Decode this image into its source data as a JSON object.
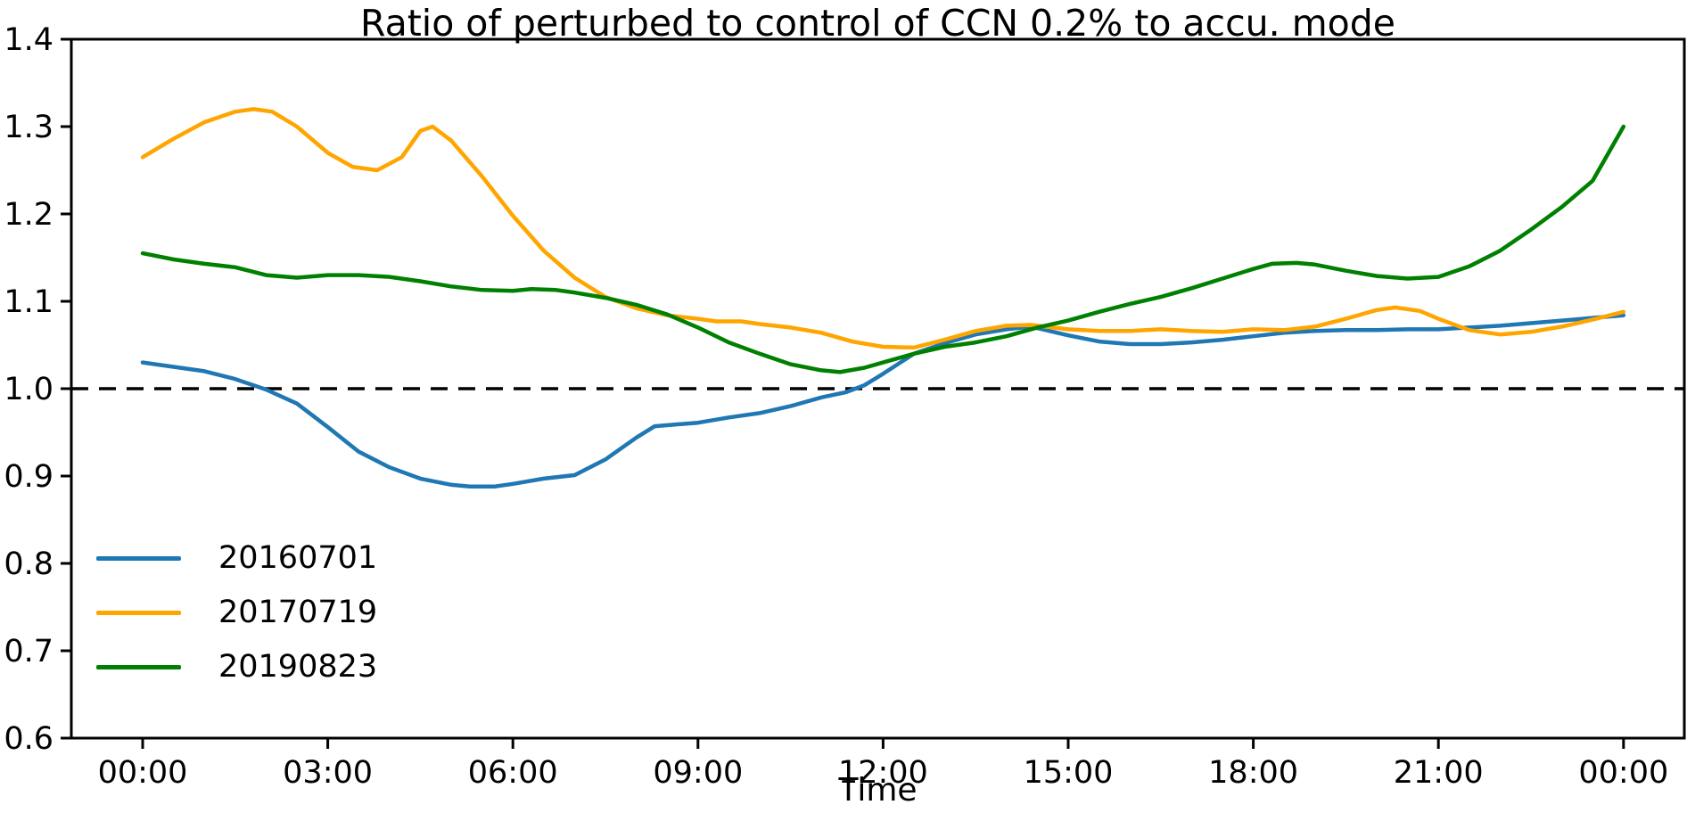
{
  "chart_data": {
    "type": "line",
    "title": "Ratio of perturbed to control of CCN 0.2% to accu. mode",
    "xlabel": "Time",
    "ylabel": "",
    "ylim": [
      0.6,
      1.4
    ],
    "yticks": [
      0.6,
      0.7,
      0.8,
      0.9,
      1.0,
      1.1,
      1.2,
      1.3,
      1.4
    ],
    "xtick_hours": [
      0,
      3,
      6,
      9,
      12,
      15,
      18,
      21,
      24
    ],
    "xtick_labels": [
      "00:00",
      "03:00",
      "06:00",
      "09:00",
      "12:00",
      "15:00",
      "18:00",
      "21:00",
      "00:00"
    ],
    "grid": false,
    "legend_position": "lower left",
    "reference_line": {
      "y": 1.0,
      "style": "dashed",
      "color": "#000000"
    },
    "axis_color": "#000000",
    "background_color": "#ffffff",
    "series": [
      {
        "name": "20160701",
        "color": "#1f77b4",
        "points": [
          [
            0,
            1.03
          ],
          [
            0.5,
            1.025
          ],
          [
            1,
            1.02
          ],
          [
            1.5,
            1.011
          ],
          [
            2,
            0.999
          ],
          [
            2.5,
            0.983
          ],
          [
            3,
            0.956
          ],
          [
            3.5,
            0.928
          ],
          [
            4,
            0.91
          ],
          [
            4.5,
            0.897
          ],
          [
            5,
            0.89
          ],
          [
            5.3,
            0.888
          ],
          [
            5.7,
            0.888
          ],
          [
            6,
            0.891
          ],
          [
            6.5,
            0.897
          ],
          [
            7,
            0.901
          ],
          [
            7.5,
            0.919
          ],
          [
            8,
            0.944
          ],
          [
            8.3,
            0.957
          ],
          [
            9,
            0.961
          ],
          [
            9.5,
            0.967
          ],
          [
            10,
            0.972
          ],
          [
            10.5,
            0.98
          ],
          [
            11,
            0.99
          ],
          [
            11.4,
            0.996
          ],
          [
            11.7,
            1.004
          ],
          [
            12,
            1.017
          ],
          [
            12.5,
            1.04
          ],
          [
            13,
            1.052
          ],
          [
            13.5,
            1.062
          ],
          [
            14,
            1.068
          ],
          [
            14.4,
            1.071
          ],
          [
            15,
            1.061
          ],
          [
            15.5,
            1.054
          ],
          [
            16,
            1.051
          ],
          [
            16.5,
            1.051
          ],
          [
            17,
            1.053
          ],
          [
            17.5,
            1.056
          ],
          [
            18,
            1.06
          ],
          [
            18.5,
            1.064
          ],
          [
            19,
            1.066
          ],
          [
            19.5,
            1.067
          ],
          [
            20,
            1.067
          ],
          [
            20.5,
            1.068
          ],
          [
            21,
            1.068
          ],
          [
            21.5,
            1.07
          ],
          [
            22,
            1.072
          ],
          [
            22.5,
            1.075
          ],
          [
            23,
            1.078
          ],
          [
            23.5,
            1.081
          ],
          [
            24,
            1.084
          ]
        ]
      },
      {
        "name": "20170719",
        "color": "#ffa500",
        "points": [
          [
            0,
            1.265
          ],
          [
            0.5,
            1.286
          ],
          [
            1,
            1.305
          ],
          [
            1.5,
            1.317
          ],
          [
            1.8,
            1.32
          ],
          [
            2.1,
            1.317
          ],
          [
            2.5,
            1.3
          ],
          [
            3,
            1.27
          ],
          [
            3.4,
            1.254
          ],
          [
            3.8,
            1.25
          ],
          [
            4.2,
            1.265
          ],
          [
            4.5,
            1.295
          ],
          [
            4.7,
            1.3
          ],
          [
            5,
            1.284
          ],
          [
            5.5,
            1.243
          ],
          [
            6,
            1.198
          ],
          [
            6.5,
            1.158
          ],
          [
            7,
            1.127
          ],
          [
            7.5,
            1.105
          ],
          [
            8,
            1.092
          ],
          [
            8.5,
            1.084
          ],
          [
            9,
            1.08
          ],
          [
            9.3,
            1.077
          ],
          [
            9.7,
            1.077
          ],
          [
            10,
            1.074
          ],
          [
            10.5,
            1.07
          ],
          [
            11,
            1.064
          ],
          [
            11.5,
            1.054
          ],
          [
            12,
            1.048
          ],
          [
            12.5,
            1.047
          ],
          [
            13,
            1.056
          ],
          [
            13.5,
            1.066
          ],
          [
            14,
            1.072
          ],
          [
            14.4,
            1.073
          ],
          [
            15,
            1.068
          ],
          [
            15.5,
            1.066
          ],
          [
            16,
            1.066
          ],
          [
            16.5,
            1.068
          ],
          [
            17,
            1.066
          ],
          [
            17.5,
            1.065
          ],
          [
            18,
            1.068
          ],
          [
            18.5,
            1.067
          ],
          [
            19,
            1.071
          ],
          [
            19.5,
            1.08
          ],
          [
            20,
            1.09
          ],
          [
            20.3,
            1.093
          ],
          [
            20.7,
            1.089
          ],
          [
            21,
            1.08
          ],
          [
            21.5,
            1.067
          ],
          [
            22,
            1.062
          ],
          [
            22.5,
            1.065
          ],
          [
            23,
            1.071
          ],
          [
            23.5,
            1.079
          ],
          [
            24,
            1.088
          ]
        ]
      },
      {
        "name": "20190823",
        "color": "#008000",
        "points": [
          [
            0,
            1.155
          ],
          [
            0.5,
            1.148
          ],
          [
            1,
            1.143
          ],
          [
            1.5,
            1.139
          ],
          [
            2,
            1.13
          ],
          [
            2.5,
            1.127
          ],
          [
            3,
            1.13
          ],
          [
            3.5,
            1.13
          ],
          [
            4,
            1.128
          ],
          [
            4.5,
            1.123
          ],
          [
            5,
            1.117
          ],
          [
            5.5,
            1.113
          ],
          [
            6,
            1.112
          ],
          [
            6.3,
            1.114
          ],
          [
            6.7,
            1.113
          ],
          [
            7,
            1.11
          ],
          [
            7.5,
            1.104
          ],
          [
            8,
            1.096
          ],
          [
            8.5,
            1.085
          ],
          [
            9,
            1.07
          ],
          [
            9.5,
            1.053
          ],
          [
            10,
            1.04
          ],
          [
            10.5,
            1.028
          ],
          [
            11,
            1.021
          ],
          [
            11.3,
            1.019
          ],
          [
            11.7,
            1.024
          ],
          [
            12,
            1.03
          ],
          [
            12.5,
            1.04
          ],
          [
            13,
            1.048
          ],
          [
            13.5,
            1.053
          ],
          [
            14,
            1.06
          ],
          [
            14.5,
            1.07
          ],
          [
            15,
            1.078
          ],
          [
            15.5,
            1.088
          ],
          [
            16,
            1.097
          ],
          [
            16.5,
            1.105
          ],
          [
            17,
            1.115
          ],
          [
            17.5,
            1.126
          ],
          [
            18,
            1.137
          ],
          [
            18.3,
            1.143
          ],
          [
            18.7,
            1.144
          ],
          [
            19,
            1.142
          ],
          [
            19.5,
            1.135
          ],
          [
            20,
            1.129
          ],
          [
            20.5,
            1.126
          ],
          [
            21,
            1.128
          ],
          [
            21.5,
            1.14
          ],
          [
            22,
            1.158
          ],
          [
            22.5,
            1.182
          ],
          [
            23,
            1.208
          ],
          [
            23.5,
            1.238
          ],
          [
            24,
            1.3
          ]
        ]
      }
    ]
  }
}
